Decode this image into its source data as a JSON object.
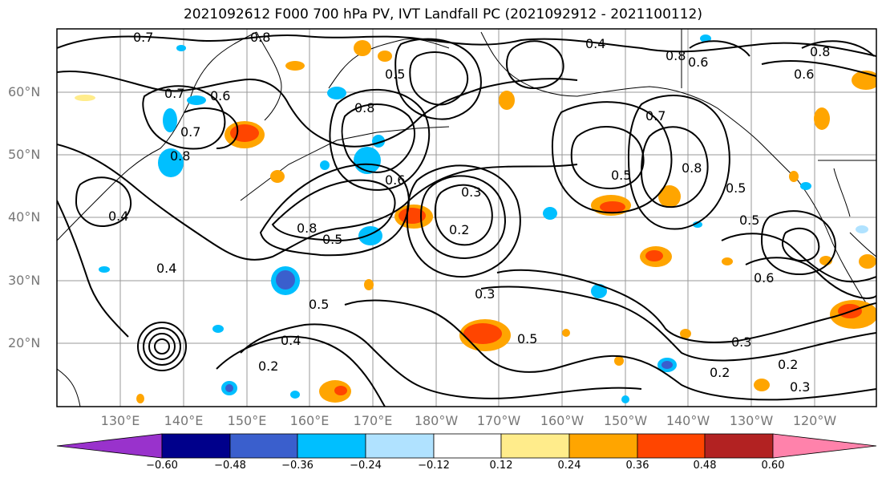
{
  "title": "2021092612 F000 700 hPa PV, IVT Landfall PC (2021092912 - 2021100112)",
  "map": {
    "lat_labels": [
      "60°N",
      "50°N",
      "40°N",
      "30°N",
      "20°N"
    ],
    "lon_labels": [
      "130°E",
      "140°E",
      "150°E",
      "160°E",
      "170°E",
      "180°W",
      "170°W",
      "160°W",
      "150°W",
      "140°W",
      "130°W",
      "120°W"
    ],
    "contour_labels": [
      "0.8",
      "0.7",
      "0.6",
      "0.5",
      "0.4",
      "0.3",
      "0.2"
    ]
  },
  "colorbar": {
    "ticks": [
      "−0.60",
      "−0.48",
      "−0.36",
      "−0.24",
      "−0.12",
      "0.12",
      "0.24",
      "0.36",
      "0.48",
      "0.60"
    ],
    "colors": [
      "#9932cc",
      "#00008b",
      "#3a5fcd",
      "#00bfff",
      "#b0e2ff",
      "#ffffff",
      "#ffec8b",
      "#ffa500",
      "#ff4500",
      "#b22222",
      "#ff82ab"
    ]
  }
}
